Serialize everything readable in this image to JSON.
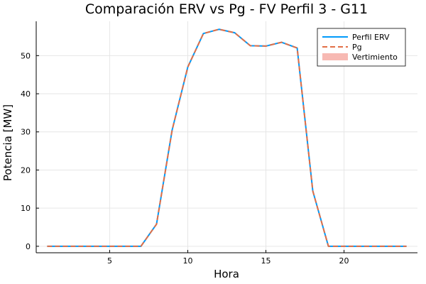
{
  "chart_data": {
    "type": "line",
    "title": "Comparación ERV vs Pg - FV Perfil 3 - G11",
    "xlabel": "Hora",
    "ylabel": "Potencia [MW]",
    "xlim": [
      0.3,
      24.7
    ],
    "ylim": [
      -1.7,
      59.0
    ],
    "xticks": [
      5,
      10,
      15,
      20
    ],
    "yticks": [
      0,
      10,
      20,
      30,
      40,
      50
    ],
    "grid": true,
    "legend_position": "top-right",
    "x": [
      1,
      2,
      3,
      4,
      5,
      6,
      7,
      8,
      9,
      10,
      11,
      12,
      13,
      14,
      15,
      16,
      17,
      18,
      19,
      20,
      21,
      22,
      23,
      24
    ],
    "series": [
      {
        "name": "Perfil ERV",
        "color": "#009AFA",
        "style": "solid",
        "values": [
          0,
          0,
          0,
          0,
          0,
          0,
          0,
          5.8,
          30.5,
          47.0,
          55.8,
          56.9,
          56.0,
          52.6,
          52.5,
          53.5,
          52.0,
          14.5,
          0,
          0,
          0,
          0,
          0,
          0
        ]
      },
      {
        "name": "Pg",
        "color": "#E26F46",
        "style": "dashed",
        "values": [
          0,
          0,
          0,
          0,
          0,
          0,
          0,
          5.8,
          30.5,
          47.0,
          55.8,
          56.9,
          56.0,
          52.6,
          52.5,
          53.5,
          52.0,
          14.5,
          0,
          0,
          0,
          0,
          0,
          0
        ]
      },
      {
        "name": "Vertimiento",
        "color": "#F4A19A",
        "style": "area",
        "values": [
          0,
          0,
          0,
          0,
          0,
          0,
          0,
          0,
          0,
          0,
          0,
          0,
          0,
          0,
          0,
          0,
          0,
          0,
          0,
          0,
          0,
          0,
          0,
          0
        ]
      }
    ]
  }
}
